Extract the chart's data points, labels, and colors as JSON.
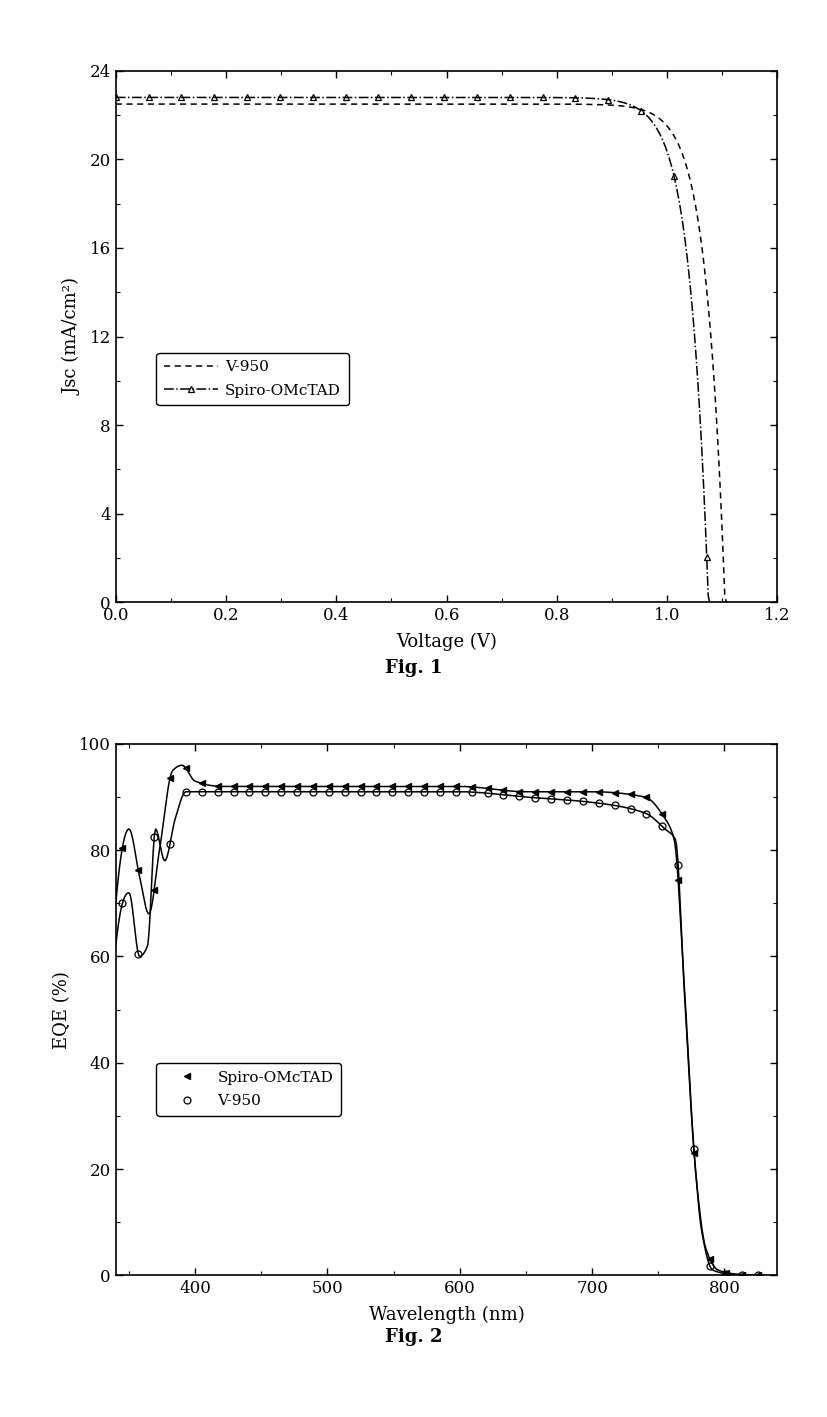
{
  "fig1": {
    "xlabel": "Voltage (V)",
    "ylabel": "Jsc (mA/cm²)",
    "xlim": [
      0.0,
      1.2
    ],
    "ylim": [
      0,
      24
    ],
    "yticks": [
      0,
      4,
      8,
      12,
      16,
      20,
      24
    ],
    "xticks": [
      0.0,
      0.2,
      0.4,
      0.6,
      0.8,
      1.0,
      1.2
    ],
    "v950_label": "V-950",
    "spiro_label": "Spiro-OMcTAD",
    "fig_label": "Fig. 1",
    "v950_Jsc": 22.5,
    "v950_Voc": 1.105,
    "spiro_Jsc": 22.8,
    "spiro_Voc": 1.075
  },
  "fig2": {
    "xlabel": "Wavelength (nm)",
    "ylabel": "EQE (%)",
    "xlim": [
      340,
      840
    ],
    "ylim": [
      0,
      100
    ],
    "yticks": [
      0,
      20,
      40,
      60,
      80,
      100
    ],
    "xticks": [
      400,
      500,
      600,
      700,
      800
    ],
    "spiro_label": "Spiro-OMcTAD",
    "v950_label": "V-950",
    "fig_label": "Fig. 2"
  },
  "background_color": "#ffffff"
}
